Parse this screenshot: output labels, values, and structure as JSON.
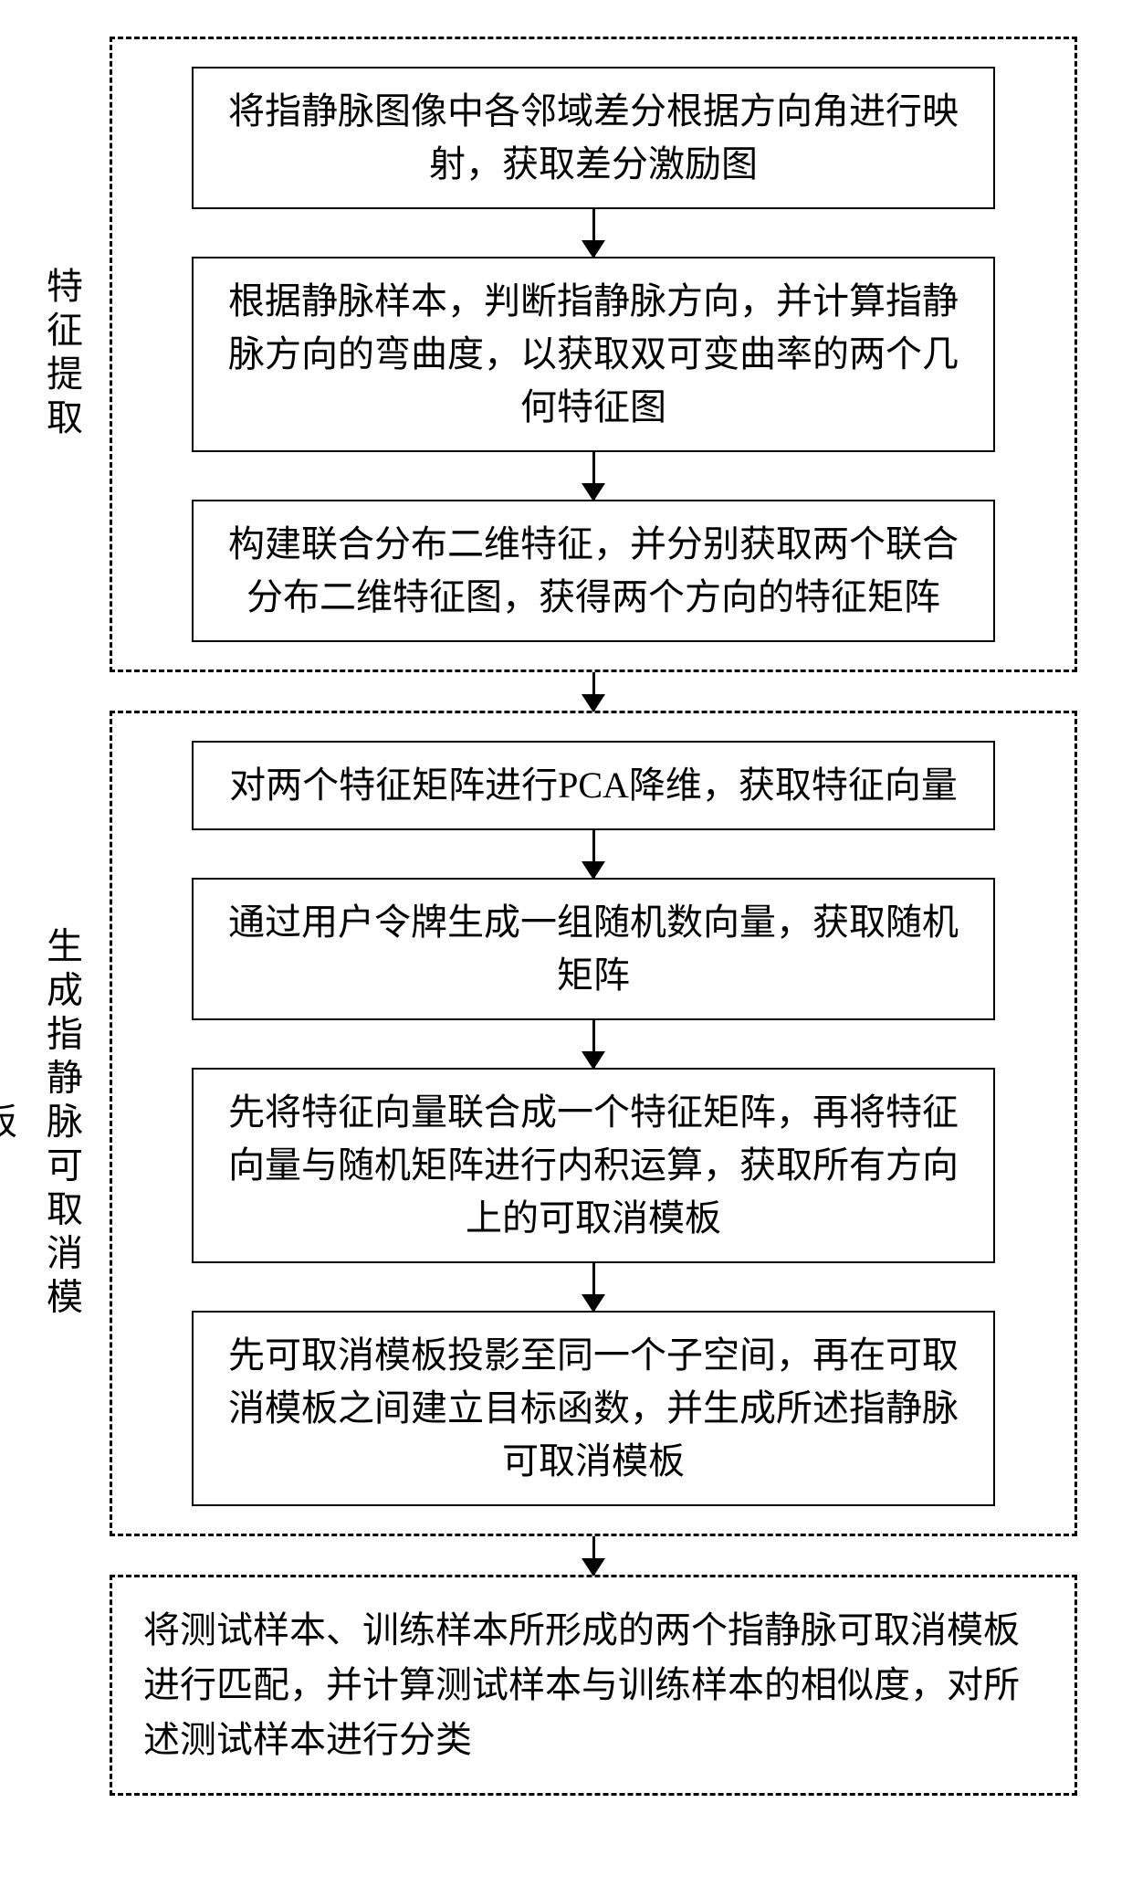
{
  "diagram": {
    "type": "flowchart",
    "background_color": "#ffffff",
    "border_color": "#000000",
    "text_color": "#000000",
    "font_family": "SimSun",
    "node_font_size": 40,
    "label_font_size": 40,
    "node_border_style": "solid",
    "node_border_width": 2.5,
    "group_border_style": "dashed",
    "group_border_width": 3,
    "arrow_color": "#000000",
    "arrow_width": 3,
    "groups": [
      {
        "id": "g1",
        "label": "特征提取",
        "nodes": [
          "n1",
          "n2",
          "n3"
        ]
      },
      {
        "id": "g2",
        "label": "生成指静脉可取消模板",
        "nodes": [
          "n4",
          "n5",
          "n6",
          "n7"
        ]
      }
    ],
    "nodes": {
      "n1": "将指静脉图像中各邻域差分根据方向角进行映射，获取差分激励图",
      "n2": "根据静脉样本，判断指静脉方向，并计算指静脉方向的弯曲度，以获取双可变曲率的两个几何特征图",
      "n3": "构建联合分布二维特征，并分别获取两个联合分布二维特征图，获得两个方向的特征矩阵",
      "n4": "对两个特征矩阵进行PCA降维，获取特征向量",
      "n5": "通过用户令牌生成一组随机数向量，获取随机矩阵",
      "n6": "先将特征向量联合成一个特征矩阵，再将特征向量与随机矩阵进行内积运算，获取所有方向上的可取消模板",
      "n7": "先可取消模板投影至同一个子空间，再在可取消模板之间建立目标函数，并生成所述指静脉可取消模板"
    },
    "final": "将测试样本、训练样本所形成的两个指静脉可取消模板进行匹配，并计算测试样本与训练样本的相似度，对所述测试样本进行分类",
    "edges": [
      {
        "from": "n1",
        "to": "n2"
      },
      {
        "from": "n2",
        "to": "n3"
      },
      {
        "from": "n3",
        "to": "n4"
      },
      {
        "from": "n4",
        "to": "n5"
      },
      {
        "from": "n5",
        "to": "n6"
      },
      {
        "from": "n6",
        "to": "n7"
      },
      {
        "from": "n7",
        "to": "final"
      }
    ]
  }
}
